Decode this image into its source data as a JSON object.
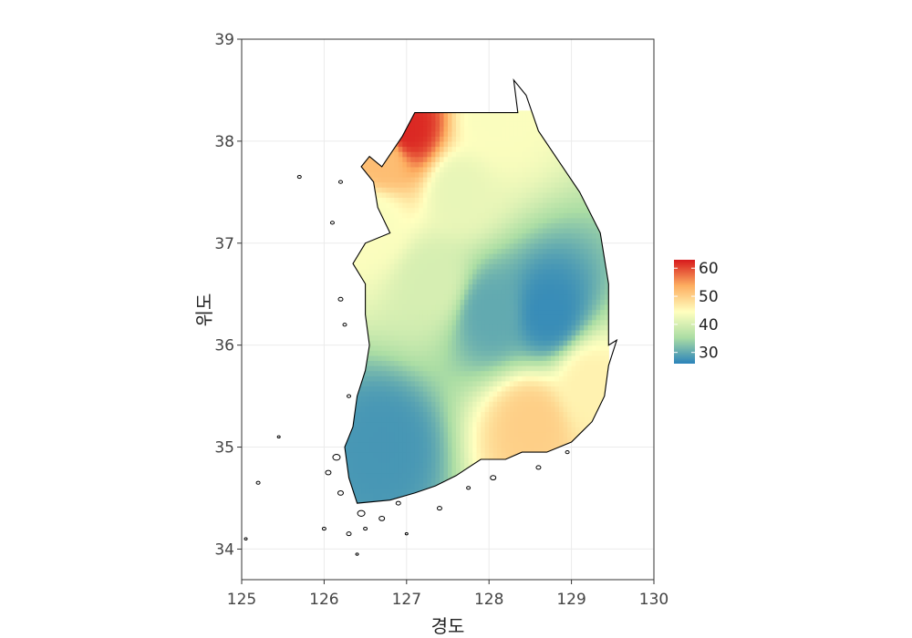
{
  "chart_data": {
    "type": "heatmap",
    "title": "",
    "xlabel": "경도",
    "ylabel": "위도",
    "xlim": [
      125,
      130
    ],
    "ylim": [
      33.7,
      39
    ],
    "x_ticks": [
      "125",
      "126",
      "127",
      "128",
      "129",
      "130"
    ],
    "y_ticks": [
      "34",
      "35",
      "36",
      "37",
      "38",
      "39"
    ],
    "grid": true,
    "colorbar": {
      "placement": "right",
      "range": [
        26,
        63
      ],
      "ticks": [
        "30",
        "40",
        "50",
        "60"
      ],
      "colors": [
        "#2B83BA",
        "#ABDDA4",
        "#FFFFBF",
        "#FDAE61",
        "#D7191C"
      ]
    },
    "surface": {
      "description_points": [
        {
          "lon": 127.0,
          "lat": 38.1,
          "value": 62
        },
        {
          "lon": 126.7,
          "lat": 37.8,
          "value": 52
        },
        {
          "lon": 127.6,
          "lat": 37.5,
          "value": 42
        },
        {
          "lon": 126.6,
          "lat": 37.2,
          "value": 44
        },
        {
          "lon": 127.3,
          "lat": 36.6,
          "value": 40
        },
        {
          "lon": 128.7,
          "lat": 36.3,
          "value": 27
        },
        {
          "lon": 128.0,
          "lat": 36.3,
          "value": 30
        },
        {
          "lon": 126.7,
          "lat": 35.0,
          "value": 28
        },
        {
          "lon": 128.5,
          "lat": 35.2,
          "value": 50
        },
        {
          "lon": 129.2,
          "lat": 35.6,
          "value": 46
        },
        {
          "lon": 128.0,
          "lat": 38.2,
          "value": 44
        }
      ]
    }
  }
}
